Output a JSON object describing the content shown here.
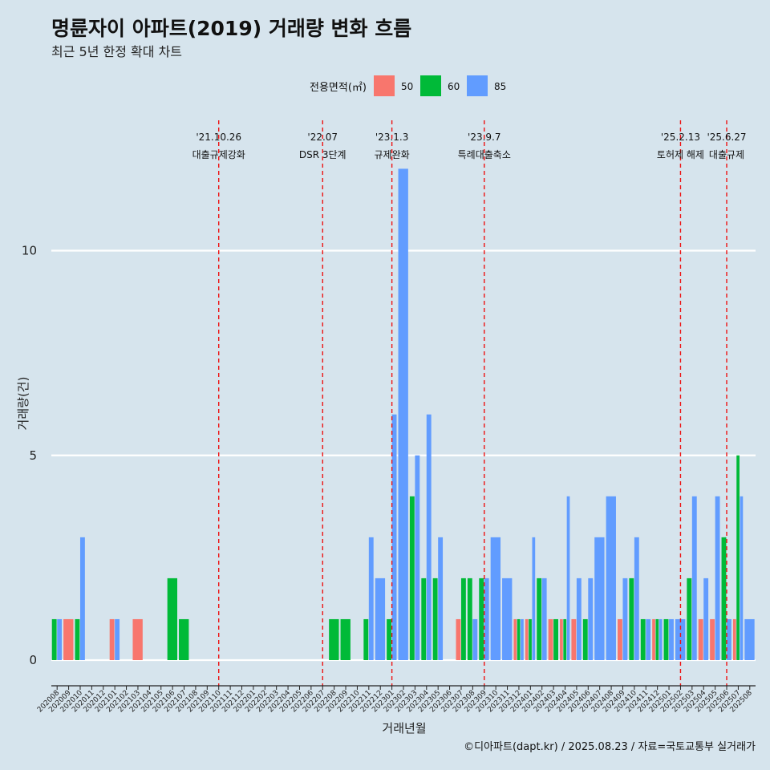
{
  "chart_data": {
    "type": "bar",
    "title": "명륜자이 아파트(2019) 거래량 변화 흐름",
    "subtitle": "최근 5년 한정 확대 차트",
    "xlabel": "거래년월",
    "ylabel": "거래량(건)",
    "ylim": [
      0,
      12.5
    ],
    "yticks": [
      0,
      5,
      10
    ],
    "grid": true,
    "legend": {
      "title": "전용면적(㎡)",
      "position": "top",
      "entries": [
        {
          "name": "50",
          "color": "#f8766d"
        },
        {
          "name": "60",
          "color": "#00ba38"
        },
        {
          "name": "85",
          "color": "#619cff"
        }
      ]
    },
    "categories": [
      "202008",
      "202009",
      "202010",
      "202011",
      "202012",
      "202101",
      "202102",
      "202103",
      "202104",
      "202105",
      "202106",
      "202107",
      "202108",
      "202109",
      "202110",
      "202111",
      "202112",
      "202201",
      "202202",
      "202203",
      "202204",
      "202205",
      "202206",
      "202207",
      "202208",
      "202209",
      "202210",
      "202211",
      "202212",
      "202301",
      "202302",
      "202303",
      "202304",
      "202305",
      "202306",
      "202307",
      "202308",
      "202309",
      "202310",
      "202311",
      "202312",
      "202401",
      "202402",
      "202403",
      "202404",
      "202405",
      "202406",
      "202407",
      "202408",
      "202409",
      "202410",
      "202411",
      "202412",
      "202501",
      "202502",
      "202503",
      "202504",
      "202505",
      "202506",
      "202507",
      "202508"
    ],
    "series": [
      {
        "name": "50",
        "values": [
          0,
          1,
          0,
          0,
          0,
          1,
          0,
          1,
          0,
          0,
          0,
          0,
          0,
          0,
          0,
          0,
          0,
          0,
          0,
          0,
          0,
          0,
          0,
          0,
          0,
          0,
          0,
          0,
          0,
          0,
          0,
          0,
          0,
          0,
          0,
          1,
          0,
          0,
          0,
          0,
          1,
          1,
          0,
          1,
          1,
          1,
          0,
          0,
          0,
          1,
          0,
          0,
          1,
          0,
          0,
          0,
          1,
          1,
          0,
          1,
          0
        ]
      },
      {
        "name": "60",
        "values": [
          1,
          0,
          1,
          0,
          0,
          0,
          0,
          0,
          0,
          0,
          2,
          1,
          0,
          0,
          0,
          0,
          0,
          0,
          0,
          0,
          0,
          0,
          0,
          0,
          1,
          1,
          0,
          1,
          0,
          1,
          0,
          4,
          2,
          2,
          0,
          2,
          2,
          2,
          0,
          0,
          1,
          1,
          2,
          1,
          1,
          0,
          1,
          0,
          0,
          0,
          2,
          1,
          1,
          1,
          0,
          2,
          0,
          0,
          3,
          5,
          0
        ]
      },
      {
        "name": "85",
        "values": [
          1,
          0,
          3,
          0,
          0,
          1,
          0,
          0,
          0,
          0,
          0,
          0,
          0,
          0,
          0,
          0,
          0,
          0,
          0,
          0,
          0,
          0,
          0,
          0,
          0,
          0,
          0,
          3,
          2,
          6,
          12,
          5,
          6,
          3,
          0,
          0,
          1,
          2,
          3,
          2,
          1,
          3,
          2,
          0,
          4,
          2,
          2,
          3,
          4,
          2,
          3,
          1,
          1,
          1,
          1,
          4,
          2,
          4,
          1,
          4,
          1
        ]
      }
    ],
    "events": [
      {
        "date": "'21.10.26",
        "label": "대출규제강화",
        "at": "202110"
      },
      {
        "date": "'22.07",
        "label": "DSR 3단계",
        "at": "202207"
      },
      {
        "date": "'23.1.3",
        "label": "규제완화",
        "at": "202301"
      },
      {
        "date": "'23.9.7",
        "label": "특례대출축소",
        "at": "202309"
      },
      {
        "date": "'25.2.13",
        "label": "토허제 해제",
        "at": "202502"
      },
      {
        "date": "'25.6.27",
        "label": "대출규제",
        "at": "202506"
      }
    ],
    "caption": "©디아파트(dapt.kr) / 2025.08.23 / 자료=국토교통부 실거래가"
  }
}
